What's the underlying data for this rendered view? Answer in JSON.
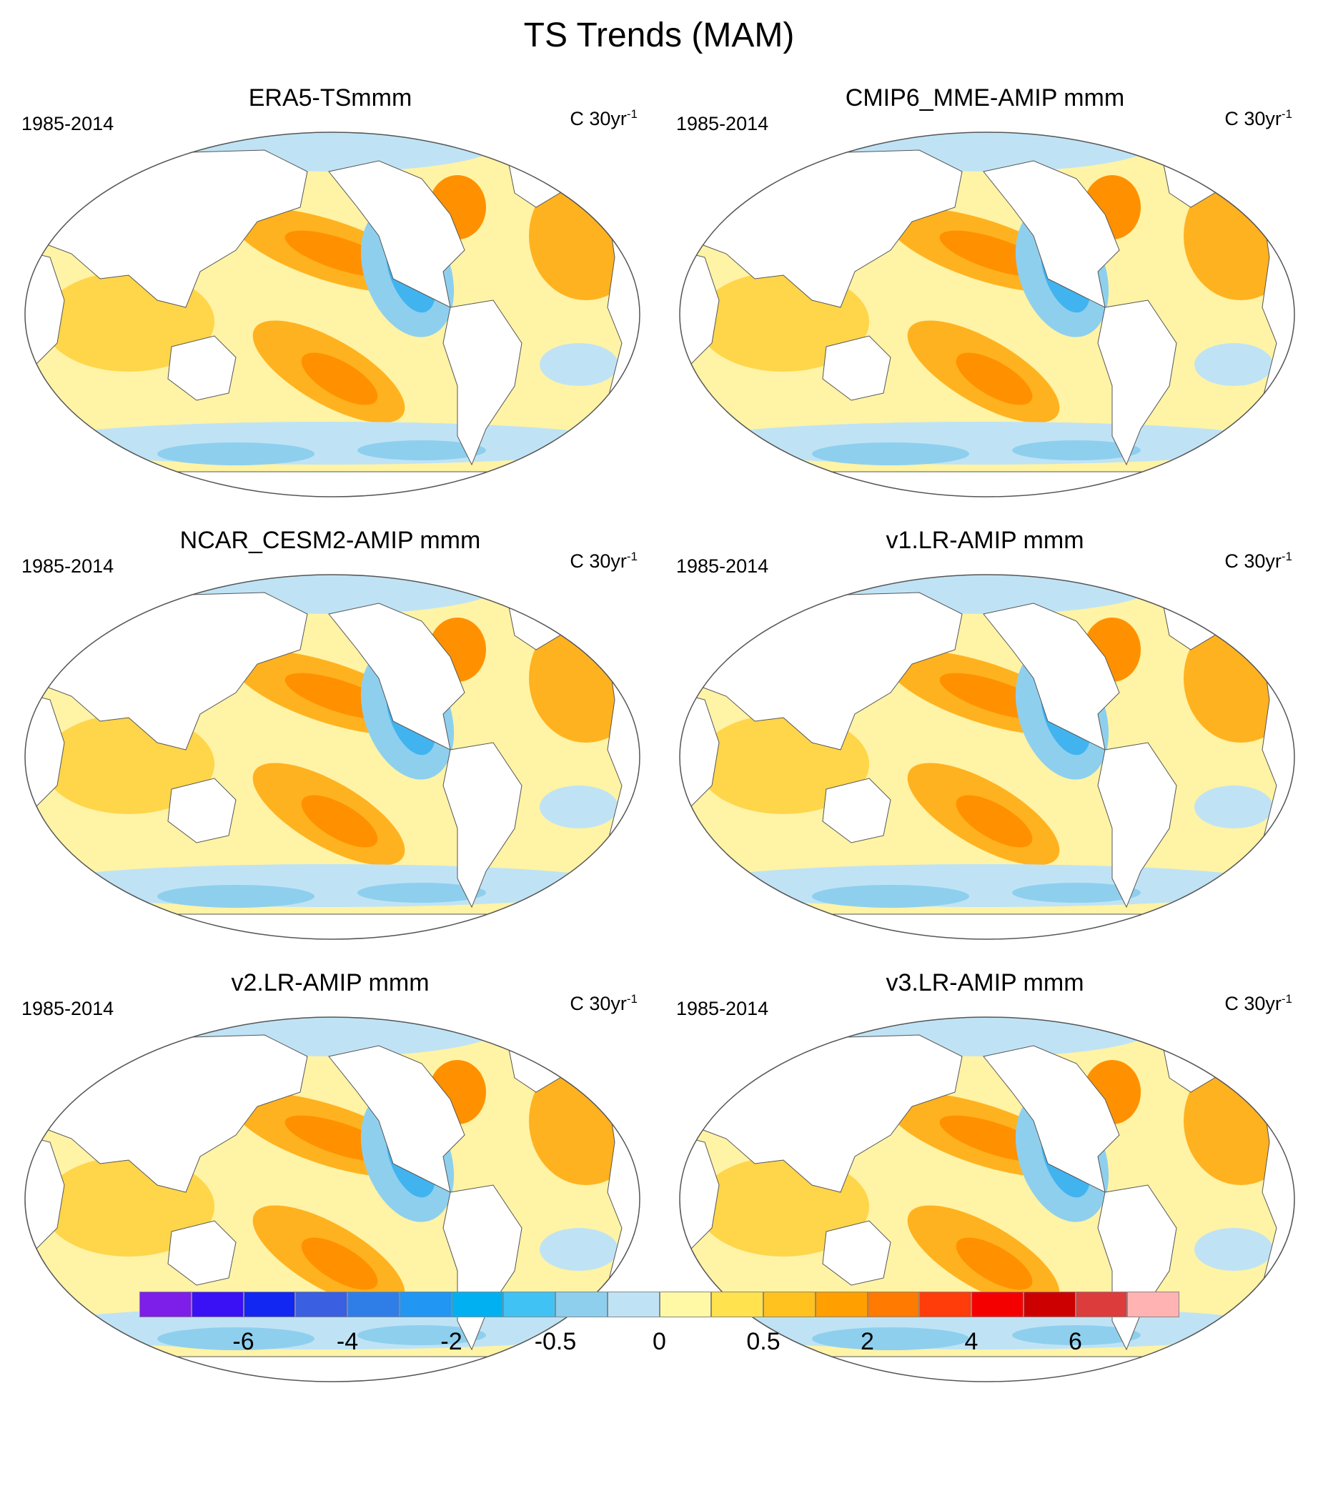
{
  "figure": {
    "title": "TS Trends (MAM)"
  },
  "panels": [
    {
      "title": "ERA5-TSmmm",
      "period": "1985-2014",
      "units": "C 30yr",
      "units_exp": "-1"
    },
    {
      "title": "CMIP6_MME-AMIP  mmm",
      "period": "1985-2014",
      "units": "C 30yr",
      "units_exp": "-1"
    },
    {
      "title": "NCAR_CESM2-AMIP  mmm",
      "period": "1985-2014",
      "units": "C 30yr",
      "units_exp": "-1"
    },
    {
      "title": "v1.LR-AMIP  mmm",
      "period": "1985-2014",
      "units": "C 30yr",
      "units_exp": "-1"
    },
    {
      "title": "v2.LR-AMIP  mmm",
      "period": "1985-2014",
      "units": "C 30yr",
      "units_exp": "-1"
    },
    {
      "title": "v3.LR-AMIP  mmm",
      "period": "1985-2014",
      "units": "C 30yr",
      "units_exp": "-1"
    }
  ],
  "colorbar": {
    "colors": [
      "#7d1fe8",
      "#3a10f5",
      "#1227f2",
      "#3a5fe0",
      "#2f7ee8",
      "#2196f3",
      "#00b0f0",
      "#41c2f5",
      "#8ecfee",
      "#bfe3f5",
      "#fff9a6",
      "#ffe24d",
      "#ffc21f",
      "#ff9f00",
      "#ff7a00",
      "#ff3d0a",
      "#f50000",
      "#cc0000",
      "#dc3c3c",
      "#ffb3b3"
    ],
    "tick_labels": [
      "-6",
      "-4",
      "-2",
      "-0.5",
      "0",
      "0.5",
      "2",
      "4",
      "6"
    ],
    "tick_boundaries": [
      2,
      4,
      6,
      8,
      10,
      12,
      14,
      16,
      18
    ]
  },
  "map_colors": {
    "ocean_base": "#fff3a6",
    "warm1": "#ffd54a",
    "warm2": "#ffb21f",
    "warm3": "#ff9100",
    "cool1": "#bfe3f5",
    "cool2": "#8ecfee",
    "cool3": "#41b4f0",
    "land": "#ffffff",
    "outline": "#555555"
  }
}
